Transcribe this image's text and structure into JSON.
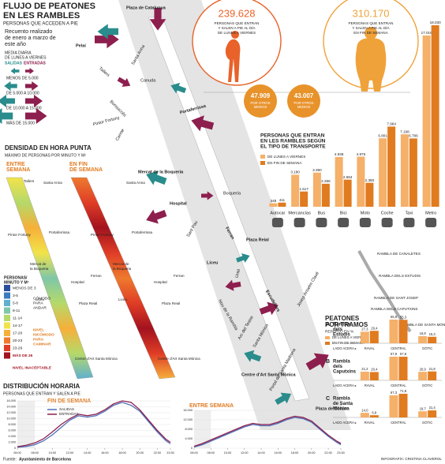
{
  "header": {
    "title": [
      "FLUJO DE PEATONES",
      "EN LES RAMBLES"
    ],
    "subtitle": "PERSONAS QUE ACCEDEN A PIE",
    "note": [
      "Recuento realizado",
      "de enero a marzo de",
      "este año"
    ]
  },
  "map_legend": {
    "title": [
      "MEDIA DIARIA",
      "DE LUNES A VIERNES"
    ],
    "out": "SALIDAS",
    "in": "ENTRADAS",
    "levels": [
      "MENOS DE 5.000",
      "DE 5.000 A 10.000",
      "DE 10.000 A 15.000",
      "MÁS DE 15.000"
    ],
    "out_color": "#2a8c8c",
    "in_color": "#8d1f4e"
  },
  "totals": [
    {
      "value": "239.628",
      "text": [
        "PERSONAS QUE ENTRAN",
        "Y SALEN A PIE AL DÍA",
        "DE LUNES A VIERNES"
      ],
      "other": "47.909",
      "other_text": [
        "POR OTROS",
        "MEDIOS"
      ],
      "color": "#e8622a"
    },
    {
      "value": "310.170",
      "text": [
        "PERSONAS QUE ENTRAN",
        "Y SALEN A PIE AL DÍA",
        "EN FIN DE SEMANA"
      ],
      "other": "43.007",
      "other_text": [
        "POR OTROS",
        "MEDIOS"
      ],
      "color": "#f0a23a"
    }
  ],
  "map": {
    "labels": [
      "Plaza de Catalunya",
      "Pelai",
      "Tallers",
      "Santa Anna",
      "Canuda",
      "Bonsuccés",
      "Pintor Fortuny",
      "Portaferrissa",
      "Carme",
      "Mercat de la Boqueria",
      "Boqueria",
      "Hospital",
      "Sant Pau",
      "Liceu",
      "Ferran",
      "Plaza Reial",
      "Unió",
      "Escudellers",
      "Nou de la Rambla",
      "Arc del Teatre",
      "Santa Mònica",
      "Josep Anselm Clavé",
      "Centre d'Art Santa Mònica",
      "Portal de Santa Madrona",
      "Plaza de Colom"
    ]
  },
  "density": {
    "title": "DENSIDAD EN HORA PUNTA",
    "subtitle": "MÁXIMO DE PERSONAS POR MINUTO Y M²",
    "left": [
      "ENTRE",
      "SEMANA"
    ],
    "right": [
      "EN FIN",
      "DE SEMANA"
    ],
    "legend_title": [
      "PERSONAS/",
      "MINUTO Y M²"
    ],
    "levels": [
      "MENOS DE 3",
      "3-5",
      "5-8",
      "8-11",
      "11-14",
      "14-17",
      "17-20",
      "20-23",
      "23-26",
      "MÁS DE 26"
    ],
    "colors": [
      "#2d4e9c",
      "#3b7bbf",
      "#5fb0d0",
      "#7fc7a8",
      "#b5d96a",
      "#f2e34a",
      "#f6b03a",
      "#ee7a2e",
      "#df3d26",
      "#a3121f"
    ],
    "comfort": [
      "CÓMODO",
      "PARA",
      "ANDAR"
    ],
    "uncomfortable": [
      "NIVEL",
      "INCÓMODO",
      "PARA",
      "CAMINAR"
    ],
    "unacceptable": "NIVEL INACEPTABLE",
    "labels": [
      "Tallers",
      "Santa Anna",
      "Pintor Fortuny",
      "Portaferrissa",
      "Mercat de",
      "la Boqueria",
      "Hospital",
      "Liceu",
      "Plaza Reial",
      "Ferran",
      "Centre d'Art Santa Mònica"
    ]
  },
  "tramos": {
    "title": [
      "PEATONES",
      "POR TRAMOS"
    ],
    "subtitle": "REPARTO EN %",
    "side": "LADO ACERA ▸",
    "sections": [
      "RAMBLA DE CANALETES",
      "RAMBLA DELS ESTUDIS",
      "RAMBLA DE SANT JOSEP",
      "RAMBLA DELS CAPUTXINS",
      "RAMBLA DE SANTA MÒNICA"
    ]
  },
  "distribution": {
    "title": "DISTRIBUCIÓN  HORARIA",
    "subtitle": "PERSONAS QUE ENTRAN Y SALEN A PIE"
  },
  "footer": {
    "source_label": "Fuente:",
    "source": "Ayuntamiento de Barcelona",
    "credit": "INFOGRAFÍA: CRISTINA CLAVEROL"
  },
  "chart_data": [
    {
      "type": "bar",
      "title": [
        "PERSONAS QUE ENTRAN",
        "EN LES RAMBLES SEGÚN",
        "EL TIPO DE TRANSPORTE"
      ],
      "categories": [
        "Autocar",
        "Mercancías",
        "Bus",
        "Bici",
        "Moto",
        "Coche",
        "Taxi",
        "Metro"
      ],
      "series": [
        {
          "name": "DE LUNES A VIERNES",
          "color": "#f5b06a",
          "values": [
            348,
            3180,
            3390,
            4938,
            4975,
            6801,
            7198,
            17016
          ],
          "value_labels": [
            "348",
            "3.180",
            "3.390",
            "4.938",
            "4.975",
            "6.801",
            "7.198",
            "17.016"
          ]
        },
        {
          "name": "EN FIN DE SEMANA",
          "color": "#e07b20",
          "values": [
            411,
            1517,
            2286,
            2694,
            2380,
            7964,
            6786,
            18030
          ],
          "value_labels": [
            "411",
            "1.517",
            "2.286",
            "2.694",
            "2.380",
            "7.964",
            "6.786",
            "18.030"
          ]
        }
      ]
    },
    {
      "type": "bar",
      "letter": "A",
      "title": [
        "Rambla",
        "dels",
        "Estudis"
      ],
      "categories": [
        "RAVAL",
        "CENTRAL",
        "GÒTIC"
      ],
      "series": [
        {
          "name": "DE LUNES A VIERNES",
          "color": "#f5b06a",
          "values": [
            27.3,
            55.9,
            16.8
          ],
          "value_labels": [
            "27,3",
            "55,9",
            "16,8"
          ]
        },
        {
          "name": "EN FIN DE SEMANA",
          "color": "#e07b20",
          "values": [
            29.4,
            55.3,
            15.3
          ],
          "value_labels": [
            "29,4",
            "55,3",
            "15,3"
          ]
        }
      ]
    },
    {
      "type": "bar",
      "letter": "B",
      "title": [
        "Rambla",
        "dels",
        "Caputxins"
      ],
      "categories": [
        "RAVAL",
        "CENTRAL",
        "GÒTIC"
      ],
      "series": [
        {
          "color": "#f5b06a",
          "values": [
            21.2,
            57.9,
            20.9
          ],
          "value_labels": [
            "21,2",
            "57,9",
            "20,9"
          ]
        },
        {
          "color": "#e07b20",
          "values": [
            20.4,
            57.8,
            21.8
          ],
          "value_labels": [
            "20,4",
            "57,8",
            "21,8"
          ]
        }
      ]
    },
    {
      "type": "bar",
      "letter": "C",
      "title": [
        "Rambla",
        "de Santa",
        "Mònica"
      ],
      "categories": [
        "RAVAL",
        "CENTRAL",
        "GÒTIC"
      ],
      "series": [
        {
          "color": "#f5b06a",
          "values": [
            14.0,
            67.3,
            18.7
          ],
          "value_labels": [
            "14,0",
            "67,3",
            "18,7"
          ]
        },
        {
          "color": "#e07b20",
          "values": [
            6.8,
            71.8,
            21.4
          ],
          "value_labels": [
            "6,8",
            "71,8",
            "21,4"
          ]
        }
      ]
    },
    {
      "type": "line",
      "title": "FIN DE SEMANA",
      "x": [
        6,
        7,
        8,
        9,
        10,
        11,
        12,
        13,
        14,
        15,
        16,
        17,
        18,
        19,
        20,
        21,
        22,
        23,
        23.5
      ],
      "xlim": [
        6,
        23.5
      ],
      "xticks": [
        {
          "value": 6,
          "label": "06:00"
        },
        {
          "value": 8,
          "label": "08:00"
        },
        {
          "value": 10,
          "label": "10:00"
        },
        {
          "value": 12,
          "label": "12:00"
        },
        {
          "value": 14,
          "label": "14:00"
        },
        {
          "value": 16,
          "label": "16:00"
        },
        {
          "value": 18,
          "label": "18:00"
        },
        {
          "value": 20,
          "label": "20:00"
        },
        {
          "value": 22,
          "label": "22:00"
        },
        {
          "value": 23.5,
          "label": "23:30"
        }
      ],
      "ylim": [
        0,
        16000
      ],
      "yticks": [
        0,
        {
          "value": 2000,
          "label": "2.000"
        },
        {
          "value": 4000,
          "label": "4.000"
        },
        {
          "value": 6000,
          "label": "6.000"
        },
        {
          "value": 8000,
          "label": "8.000"
        },
        {
          "value": 10000,
          "label": "10.000"
        },
        {
          "value": 12000,
          "label": "12.000"
        },
        {
          "value": 14000,
          "label": "14.000"
        },
        {
          "value": 16000,
          "label": "16.000"
        }
      ],
      "series": [
        {
          "name": "SALIDAS",
          "color": "#4f6fb8",
          "values": [
            300,
            600,
            1200,
            2500,
            4500,
            7000,
            9500,
            11000,
            10500,
            11000,
            12500,
            14500,
            15500,
            14500,
            12500,
            9000,
            5500,
            2500,
            1500
          ]
        },
        {
          "name": "ENTRADAS",
          "color": "#8d1f4e",
          "values": [
            500,
            1000,
            1800,
            3200,
            5500,
            8000,
            10000,
            11500,
            11000,
            11500,
            13000,
            15000,
            16000,
            15500,
            13000,
            9500,
            6000,
            3000,
            2000
          ]
        }
      ]
    },
    {
      "type": "line",
      "title": "ENTRE SEMANA",
      "x": [
        6,
        7,
        8,
        9,
        10,
        11,
        12,
        13,
        14,
        15,
        16,
        17,
        18,
        19,
        20,
        21,
        22,
        23,
        23.5
      ],
      "xlim": [
        6,
        23.5
      ],
      "xticks": [
        {
          "value": 6,
          "label": "06:00"
        },
        {
          "value": 8,
          "label": "08:00"
        },
        {
          "value": 10,
          "label": "10:00"
        },
        {
          "value": 12,
          "label": "12:00"
        },
        {
          "value": 14,
          "label": "14:00"
        },
        {
          "value": 16,
          "label": "16:00"
        },
        {
          "value": 18,
          "label": "18:00"
        },
        {
          "value": 20,
          "label": "20:00"
        },
        {
          "value": 22,
          "label": "22:00"
        },
        {
          "value": 23.5,
          "label": "23:30"
        }
      ],
      "ylim": [
        0,
        16000
      ],
      "yticks": [
        0,
        {
          "value": 4000,
          "label": "4.000"
        },
        {
          "value": 8000,
          "label": "8.000"
        },
        {
          "value": 12000,
          "label": "12.000"
        },
        {
          "value": 16000,
          "label": "16.000"
        }
      ],
      "series": [
        {
          "color": "#4f6fb8",
          "values": [
            500,
            1500,
            3000,
            4500,
            6000,
            7500,
            9000,
            10000,
            9500,
            9500,
            10500,
            12000,
            13000,
            12500,
            11000,
            8000,
            5000,
            2500,
            1500
          ]
        },
        {
          "color": "#8d1f4e",
          "values": [
            800,
            2000,
            3500,
            5000,
            6500,
            8000,
            9500,
            10500,
            10000,
            10000,
            11000,
            12500,
            13500,
            13000,
            11500,
            8500,
            5500,
            3000,
            2000
          ]
        }
      ]
    }
  ]
}
